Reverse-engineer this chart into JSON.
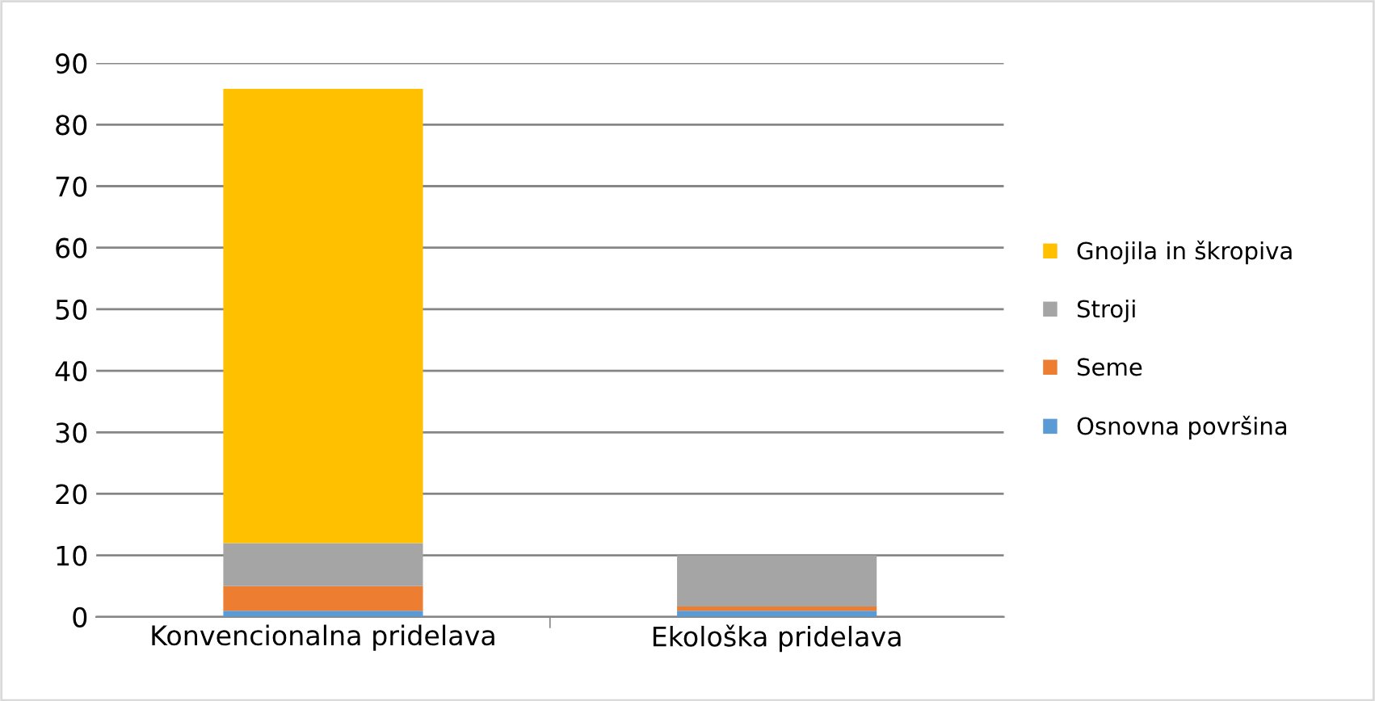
{
  "chart_data": {
    "type": "bar",
    "stacked": true,
    "categories": [
      "Konvencionalna pridelava",
      "Ekološka pridelava"
    ],
    "series": [
      {
        "name": "Osnovna površina",
        "color": "#5b9bd5",
        "values": [
          1,
          1
        ]
      },
      {
        "name": "Seme",
        "color": "#ed7d31",
        "values": [
          4,
          0.7
        ]
      },
      {
        "name": "Stroji",
        "color": "#a5a5a5",
        "values": [
          7,
          8.3
        ]
      },
      {
        "name": "Gnojila in škropiva",
        "color": "#ffc000",
        "values": [
          73.8,
          0
        ]
      }
    ],
    "ylim": [
      0,
      90
    ],
    "yticks": [
      0,
      10,
      20,
      30,
      40,
      50,
      60,
      70,
      80,
      90
    ],
    "grid": "y",
    "legend": "right"
  }
}
